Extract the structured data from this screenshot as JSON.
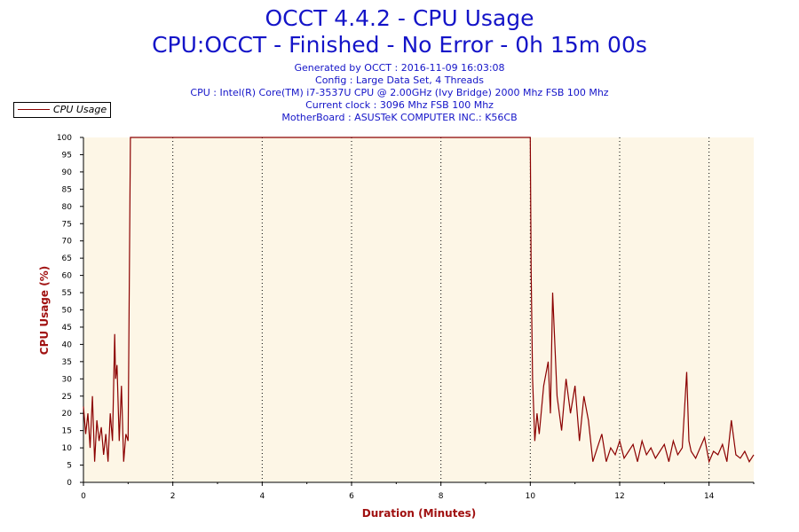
{
  "header": {
    "title_line1": "OCCT 4.4.2 - CPU Usage",
    "title_line2": "CPU:OCCT - Finished - No Error - 0h 15m 00s",
    "generated": "Generated by OCCT : 2016-11-09 16:03:08",
    "config": "Config : Large Data Set, 4 Threads",
    "cpu": "CPU : Intel(R) Core(TM) i7-3537U CPU @ 2.00GHz (Ivy Bridge) 2000 Mhz FSB 100 Mhz",
    "clock": "Current clock : 3096 Mhz FSB 100 Mhz",
    "motherboard": "MotherBoard : ASUSTeK COMPUTER INC.: K56CB"
  },
  "legend": {
    "label": "CPU Usage"
  },
  "colors": {
    "series": "#8b0000",
    "plot_bg": "#fdf6e6",
    "title": "#1414c8",
    "axis_title": "#a01010"
  },
  "chart_data": {
    "type": "line",
    "xlabel": "Duration (Minutes)",
    "ylabel": "CPU Usage (%)",
    "xlim": [
      0,
      15
    ],
    "ylim": [
      0,
      100
    ],
    "xticks": [
      0,
      2,
      4,
      6,
      8,
      10,
      12,
      14
    ],
    "yticks": [
      0,
      5,
      10,
      15,
      20,
      25,
      30,
      35,
      40,
      45,
      50,
      55,
      60,
      65,
      70,
      75,
      80,
      85,
      90,
      95,
      100
    ],
    "grid": "vertical dotted",
    "legend_position": "top-left",
    "series": [
      {
        "name": "CPU Usage",
        "x": [
          0,
          0.05,
          0.1,
          0.15,
          0.2,
          0.25,
          0.3,
          0.35,
          0.4,
          0.45,
          0.5,
          0.55,
          0.6,
          0.65,
          0.7,
          0.72,
          0.75,
          0.8,
          0.85,
          0.9,
          0.95,
          1.0,
          1.05,
          1.08,
          1.1,
          10.0,
          10.02,
          10.05,
          10.1,
          10.15,
          10.2,
          10.3,
          10.4,
          10.45,
          10.5,
          10.6,
          10.7,
          10.8,
          10.9,
          11.0,
          11.1,
          11.2,
          11.3,
          11.4,
          11.5,
          11.6,
          11.7,
          11.8,
          11.9,
          12.0,
          12.1,
          12.2,
          12.3,
          12.4,
          12.5,
          12.6,
          12.7,
          12.8,
          12.9,
          13.0,
          13.1,
          13.2,
          13.3,
          13.4,
          13.5,
          13.55,
          13.6,
          13.7,
          13.8,
          13.9,
          14.0,
          14.1,
          14.2,
          14.3,
          14.4,
          14.5,
          14.6,
          14.7,
          14.8,
          14.9,
          15.0
        ],
        "values": [
          22,
          14,
          20,
          10,
          25,
          6,
          18,
          12,
          16,
          8,
          14,
          6,
          20,
          12,
          43,
          30,
          34,
          12,
          28,
          6,
          14,
          12,
          100,
          100,
          100,
          100,
          61,
          30,
          12,
          20,
          14,
          28,
          35,
          20,
          55,
          25,
          15,
          30,
          20,
          28,
          12,
          25,
          18,
          6,
          10,
          14,
          6,
          10,
          8,
          12,
          7,
          9,
          11,
          6,
          12,
          8,
          10,
          7,
          9,
          11,
          6,
          12,
          8,
          10,
          32,
          12,
          9,
          7,
          10,
          13,
          6,
          9,
          8,
          11,
          6,
          18,
          8,
          7,
          9,
          6,
          8
        ]
      }
    ]
  }
}
